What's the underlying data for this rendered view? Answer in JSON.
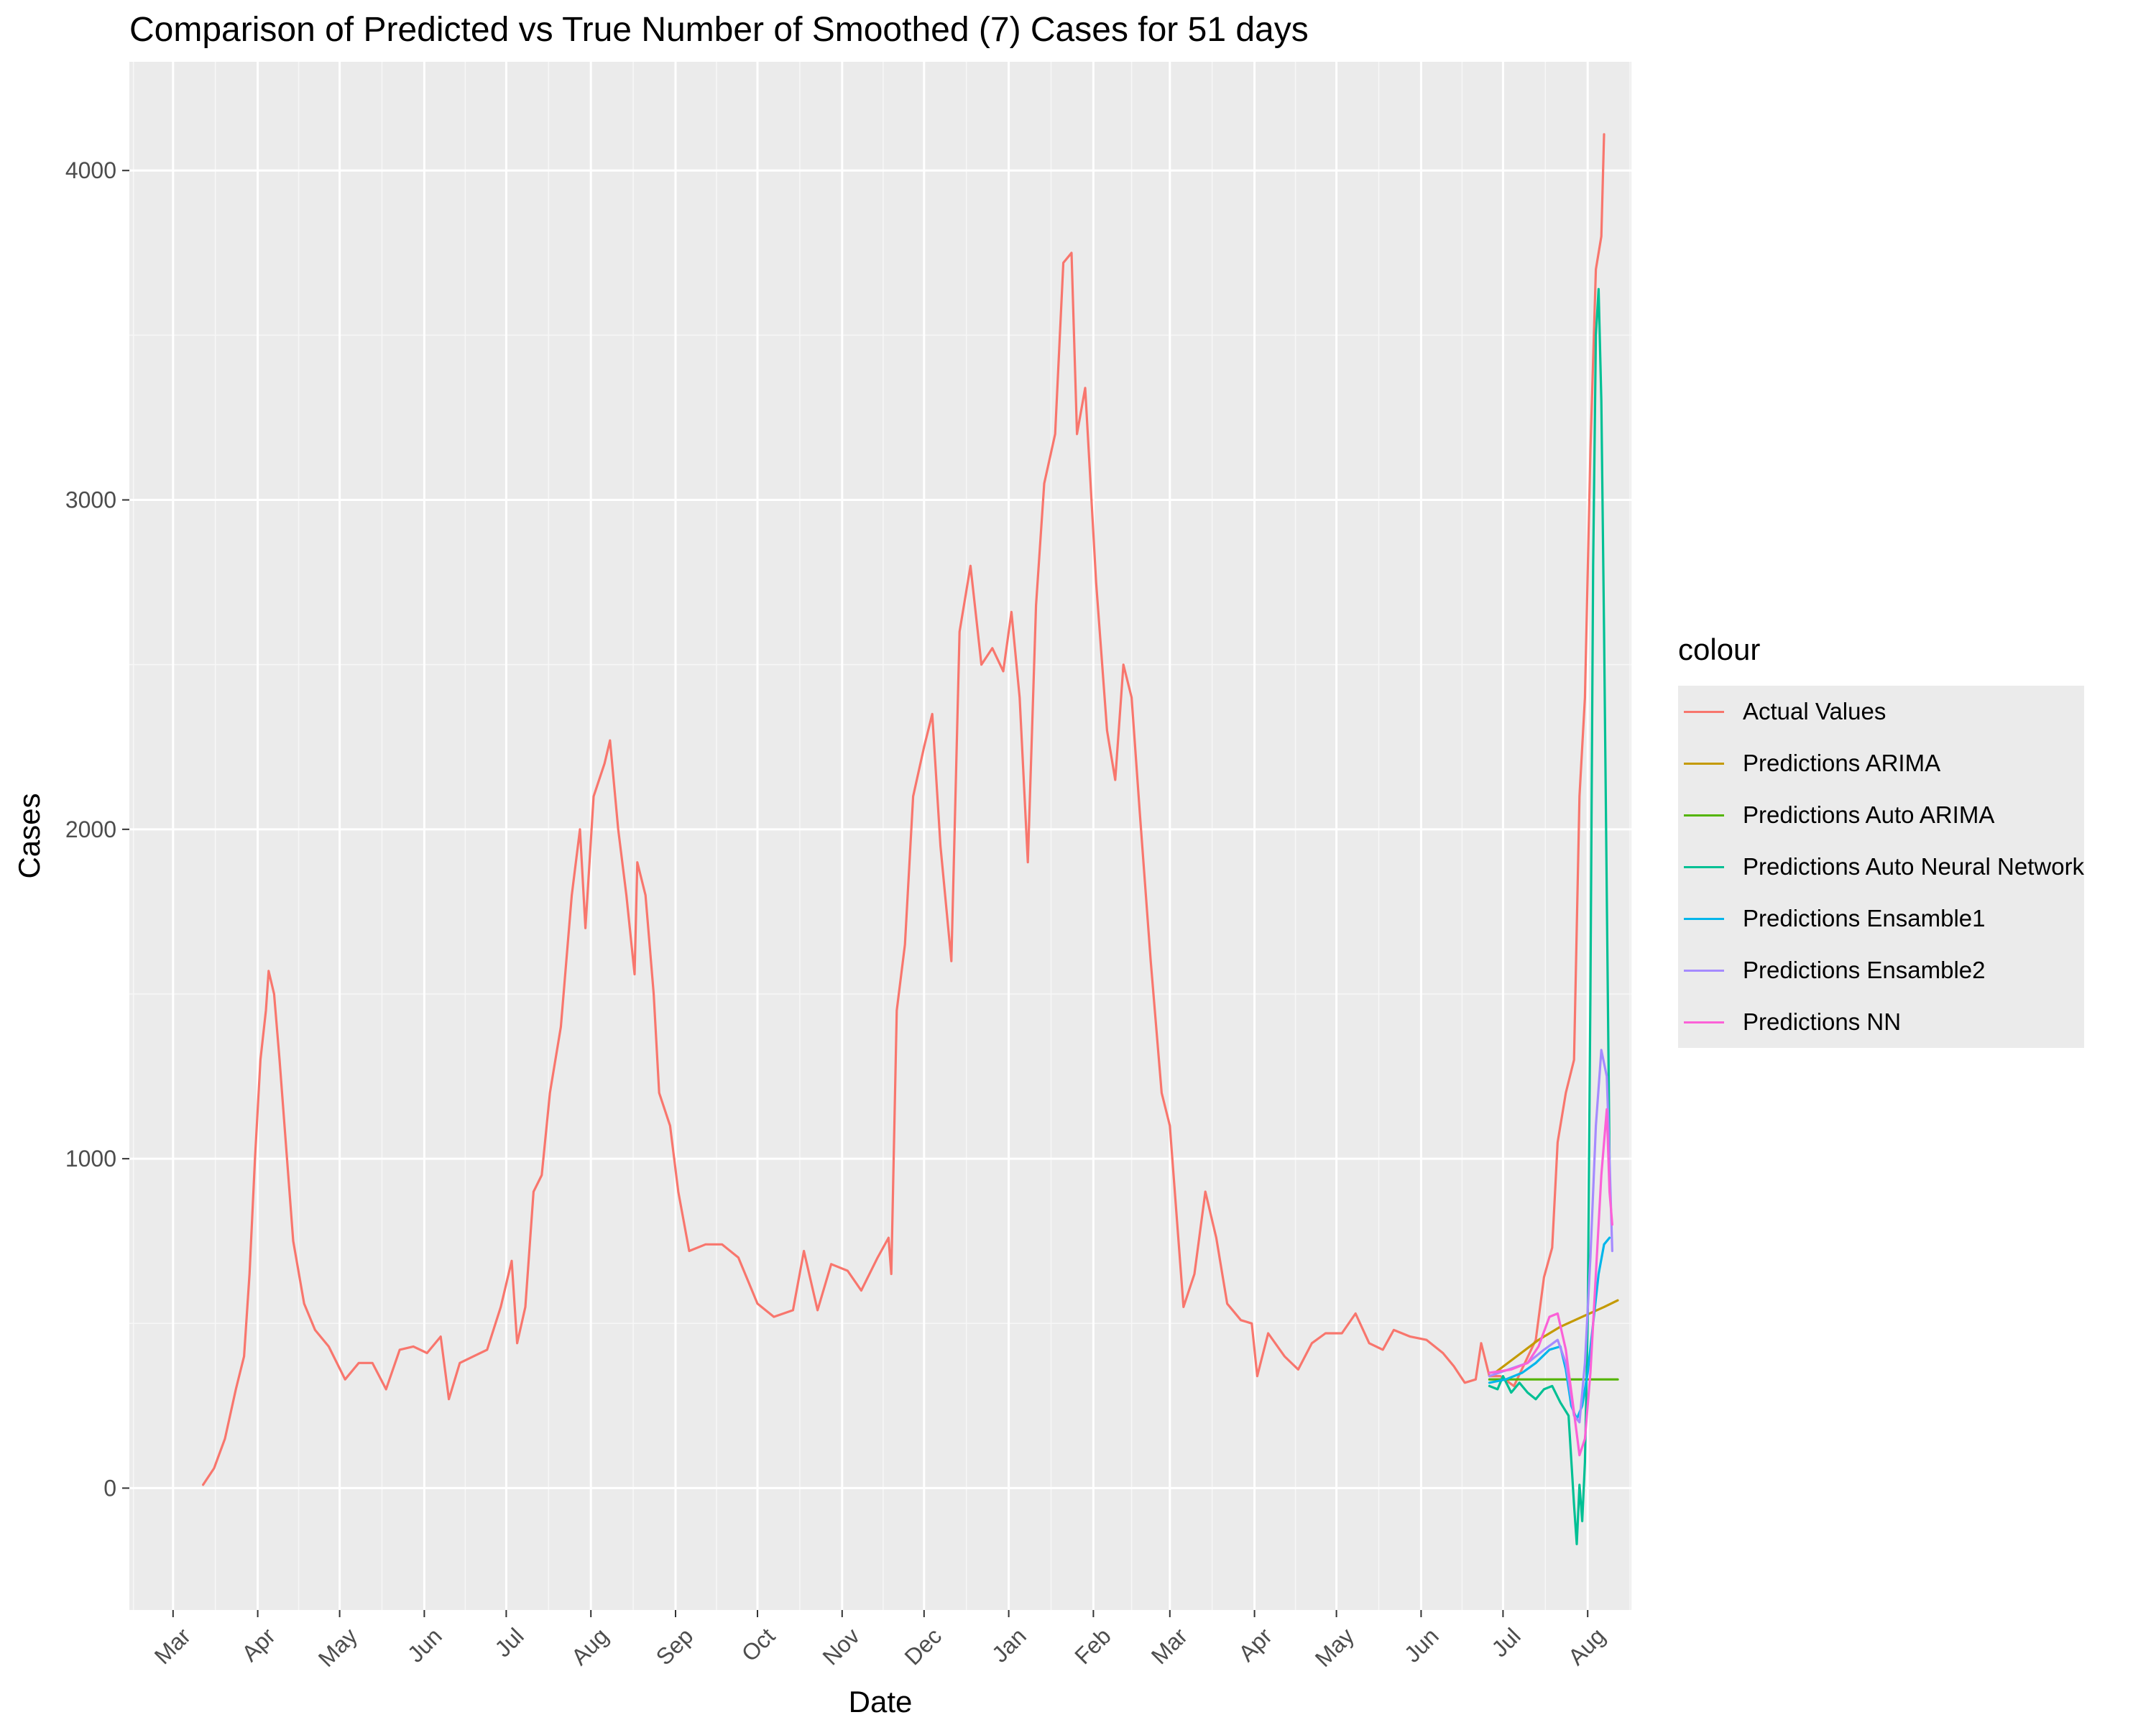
{
  "chart_data": {
    "type": "line",
    "title": "Comparison of Predicted vs True Number of Smoothed (7) Cases for 51 days",
    "xlabel": "Date",
    "ylabel": "Cases",
    "x_ticks": [
      "Mar",
      "Apr",
      "May",
      "Jun",
      "Jul",
      "Aug",
      "Sep",
      "Oct",
      "Nov",
      "Dec",
      "Jan",
      "Feb",
      "Mar",
      "Apr",
      "May",
      "Jun",
      "Jul",
      "Aug"
    ],
    "y_ticks": [
      0,
      1000,
      2000,
      3000,
      4000
    ],
    "xlim": [
      "2020-02-14",
      "2021-08-17"
    ],
    "ylim": [
      -370,
      4330
    ],
    "legend_title": "colour",
    "legend_position": "right",
    "grid": true,
    "series": [
      {
        "name": "Actual Values",
        "color": "#F8766D",
        "points": [
          [
            "2020-03-12",
            10
          ],
          [
            "2020-03-16",
            60
          ],
          [
            "2020-03-20",
            150
          ],
          [
            "2020-03-24",
            300
          ],
          [
            "2020-03-27",
            400
          ],
          [
            "2020-03-29",
            650
          ],
          [
            "2020-03-31",
            1000
          ],
          [
            "2020-04-02",
            1300
          ],
          [
            "2020-04-04",
            1450
          ],
          [
            "2020-04-05",
            1570
          ],
          [
            "2020-04-07",
            1500
          ],
          [
            "2020-04-09",
            1300
          ],
          [
            "2020-04-11",
            1080
          ],
          [
            "2020-04-14",
            750
          ],
          [
            "2020-04-18",
            560
          ],
          [
            "2020-04-22",
            480
          ],
          [
            "2020-04-27",
            430
          ],
          [
            "2020-05-03",
            330
          ],
          [
            "2020-05-08",
            380
          ],
          [
            "2020-05-13",
            380
          ],
          [
            "2020-05-18",
            300
          ],
          [
            "2020-05-23",
            420
          ],
          [
            "2020-05-28",
            430
          ],
          [
            "2020-06-02",
            410
          ],
          [
            "2020-06-07",
            460
          ],
          [
            "2020-06-10",
            270
          ],
          [
            "2020-06-14",
            380
          ],
          [
            "2020-06-19",
            400
          ],
          [
            "2020-06-24",
            420
          ],
          [
            "2020-06-29",
            550
          ],
          [
            "2020-07-03",
            690
          ],
          [
            "2020-07-05",
            440
          ],
          [
            "2020-07-08",
            550
          ],
          [
            "2020-07-11",
            900
          ],
          [
            "2020-07-14",
            950
          ],
          [
            "2020-07-17",
            1200
          ],
          [
            "2020-07-21",
            1400
          ],
          [
            "2020-07-25",
            1800
          ],
          [
            "2020-07-28",
            2000
          ],
          [
            "2020-07-30",
            1700
          ],
          [
            "2020-08-02",
            2100
          ],
          [
            "2020-08-06",
            2200
          ],
          [
            "2020-08-08",
            2270
          ],
          [
            "2020-08-11",
            2000
          ],
          [
            "2020-08-14",
            1800
          ],
          [
            "2020-08-17",
            1560
          ],
          [
            "2020-08-18",
            1900
          ],
          [
            "2020-08-21",
            1800
          ],
          [
            "2020-08-24",
            1500
          ],
          [
            "2020-08-26",
            1200
          ],
          [
            "2020-08-30",
            1100
          ],
          [
            "2020-09-02",
            900
          ],
          [
            "2020-09-06",
            720
          ],
          [
            "2020-09-12",
            740
          ],
          [
            "2020-09-18",
            740
          ],
          [
            "2020-09-24",
            700
          ],
          [
            "2020-10-01",
            560
          ],
          [
            "2020-10-07",
            520
          ],
          [
            "2020-10-14",
            540
          ],
          [
            "2020-10-18",
            720
          ],
          [
            "2020-10-23",
            540
          ],
          [
            "2020-10-28",
            680
          ],
          [
            "2020-11-03",
            660
          ],
          [
            "2020-11-08",
            600
          ],
          [
            "2020-11-14",
            700
          ],
          [
            "2020-11-18",
            760
          ],
          [
            "2020-11-19",
            650
          ],
          [
            "2020-11-21",
            1450
          ],
          [
            "2020-11-24",
            1650
          ],
          [
            "2020-11-27",
            2100
          ],
          [
            "2020-12-01",
            2250
          ],
          [
            "2020-12-04",
            2350
          ],
          [
            "2020-12-07",
            1950
          ],
          [
            "2020-12-11",
            1600
          ],
          [
            "2020-12-14",
            2600
          ],
          [
            "2020-12-18",
            2800
          ],
          [
            "2020-12-22",
            2500
          ],
          [
            "2020-12-26",
            2550
          ],
          [
            "2020-12-30",
            2480
          ],
          [
            "2021-01-02",
            2660
          ],
          [
            "2021-01-05",
            2400
          ],
          [
            "2021-01-08",
            1900
          ],
          [
            "2021-01-11",
            2680
          ],
          [
            "2021-01-14",
            3050
          ],
          [
            "2021-01-18",
            3200
          ],
          [
            "2021-01-21",
            3720
          ],
          [
            "2021-01-24",
            3750
          ],
          [
            "2021-01-26",
            3200
          ],
          [
            "2021-01-29",
            3340
          ],
          [
            "2021-02-02",
            2750
          ],
          [
            "2021-02-06",
            2300
          ],
          [
            "2021-02-09",
            2150
          ],
          [
            "2021-02-12",
            2500
          ],
          [
            "2021-02-15",
            2400
          ],
          [
            "2021-02-18",
            2050
          ],
          [
            "2021-02-22",
            1600
          ],
          [
            "2021-02-26",
            1200
          ],
          [
            "2021-03-01",
            1100
          ],
          [
            "2021-03-03",
            880
          ],
          [
            "2021-03-06",
            550
          ],
          [
            "2021-03-10",
            650
          ],
          [
            "2021-03-14",
            900
          ],
          [
            "2021-03-18",
            760
          ],
          [
            "2021-03-22",
            560
          ],
          [
            "2021-03-27",
            510
          ],
          [
            "2021-03-31",
            500
          ],
          [
            "2021-04-02",
            340
          ],
          [
            "2021-04-06",
            470
          ],
          [
            "2021-04-12",
            400
          ],
          [
            "2021-04-17",
            360
          ],
          [
            "2021-04-22",
            440
          ],
          [
            "2021-04-27",
            470
          ],
          [
            "2021-05-03",
            470
          ],
          [
            "2021-05-08",
            530
          ],
          [
            "2021-05-13",
            440
          ],
          [
            "2021-05-18",
            420
          ],
          [
            "2021-05-22",
            480
          ],
          [
            "2021-05-28",
            460
          ],
          [
            "2021-06-03",
            450
          ],
          [
            "2021-06-09",
            410
          ],
          [
            "2021-06-13",
            370
          ],
          [
            "2021-06-17",
            320
          ],
          [
            "2021-06-21",
            330
          ],
          [
            "2021-06-23",
            440
          ],
          [
            "2021-06-26",
            340
          ],
          [
            "2021-06-30",
            340
          ],
          [
            "2021-07-05",
            310
          ],
          [
            "2021-07-09",
            380
          ],
          [
            "2021-07-13",
            450
          ],
          [
            "2021-07-16",
            640
          ],
          [
            "2021-07-19",
            730
          ],
          [
            "2021-07-21",
            1050
          ],
          [
            "2021-07-24",
            1200
          ],
          [
            "2021-07-27",
            1300
          ],
          [
            "2021-07-29",
            2100
          ],
          [
            "2021-07-31",
            2400
          ],
          [
            "2021-08-02",
            3150
          ],
          [
            "2021-08-04",
            3700
          ],
          [
            "2021-08-06",
            3800
          ],
          [
            "2021-08-07",
            4110
          ]
        ]
      },
      {
        "name": "Predictions ARIMA",
        "color": "#C49A00",
        "points": [
          [
            "2021-06-28",
            350
          ],
          [
            "2021-07-06",
            400
          ],
          [
            "2021-07-14",
            450
          ],
          [
            "2021-07-22",
            490
          ],
          [
            "2021-07-30",
            520
          ],
          [
            "2021-08-07",
            550
          ],
          [
            "2021-08-12",
            570
          ]
        ]
      },
      {
        "name": "Predictions Auto ARIMA",
        "color": "#53B400",
        "points": [
          [
            "2021-06-26",
            330
          ],
          [
            "2021-08-12",
            330
          ]
        ]
      },
      {
        "name": "Predictions Auto Neural Network",
        "color": "#00C094",
        "points": [
          [
            "2021-06-26",
            310
          ],
          [
            "2021-06-29",
            300
          ],
          [
            "2021-07-01",
            340
          ],
          [
            "2021-07-04",
            290
          ],
          [
            "2021-07-07",
            320
          ],
          [
            "2021-07-10",
            290
          ],
          [
            "2021-07-13",
            270
          ],
          [
            "2021-07-16",
            300
          ],
          [
            "2021-07-19",
            310
          ],
          [
            "2021-07-22",
            260
          ],
          [
            "2021-07-25",
            220
          ],
          [
            "2021-07-27",
            -50
          ],
          [
            "2021-07-28",
            -170
          ],
          [
            "2021-07-29",
            10
          ],
          [
            "2021-07-30",
            -100
          ],
          [
            "2021-07-31",
            80
          ],
          [
            "2021-08-01",
            500
          ],
          [
            "2021-08-02",
            1500
          ],
          [
            "2021-08-03",
            2800
          ],
          [
            "2021-08-04",
            3500
          ],
          [
            "2021-08-05",
            3640
          ],
          [
            "2021-08-06",
            3300
          ],
          [
            "2021-08-07",
            2600
          ],
          [
            "2021-08-08",
            1800
          ],
          [
            "2021-08-09",
            1000
          ]
        ]
      },
      {
        "name": "Predictions Ensamble1",
        "color": "#00B6EB",
        "points": [
          [
            "2021-06-26",
            320
          ],
          [
            "2021-07-02",
            330
          ],
          [
            "2021-07-08",
            350
          ],
          [
            "2021-07-13",
            380
          ],
          [
            "2021-07-18",
            420
          ],
          [
            "2021-07-22",
            430
          ],
          [
            "2021-07-24",
            360
          ],
          [
            "2021-07-26",
            250
          ],
          [
            "2021-07-28",
            210
          ],
          [
            "2021-07-30",
            250
          ],
          [
            "2021-08-01",
            350
          ],
          [
            "2021-08-03",
            500
          ],
          [
            "2021-08-05",
            650
          ],
          [
            "2021-08-07",
            740
          ],
          [
            "2021-08-09",
            760
          ]
        ]
      },
      {
        "name": "Predictions Ensamble2",
        "color": "#A58AFF",
        "points": [
          [
            "2021-06-26",
            340
          ],
          [
            "2021-07-03",
            360
          ],
          [
            "2021-07-10",
            380
          ],
          [
            "2021-07-16",
            420
          ],
          [
            "2021-07-21",
            450
          ],
          [
            "2021-07-24",
            380
          ],
          [
            "2021-07-27",
            220
          ],
          [
            "2021-07-29",
            200
          ],
          [
            "2021-07-31",
            380
          ],
          [
            "2021-08-02",
            700
          ],
          [
            "2021-08-04",
            1100
          ],
          [
            "2021-08-06",
            1330
          ],
          [
            "2021-08-08",
            1250
          ],
          [
            "2021-08-09",
            1000
          ],
          [
            "2021-08-10",
            720
          ]
        ]
      },
      {
        "name": "Predictions NN",
        "color": "#FB61D7",
        "points": [
          [
            "2021-06-26",
            350
          ],
          [
            "2021-07-04",
            360
          ],
          [
            "2021-07-10",
            380
          ],
          [
            "2021-07-14",
            430
          ],
          [
            "2021-07-18",
            520
          ],
          [
            "2021-07-21",
            530
          ],
          [
            "2021-07-24",
            420
          ],
          [
            "2021-07-27",
            230
          ],
          [
            "2021-07-29",
            100
          ],
          [
            "2021-07-31",
            150
          ],
          [
            "2021-08-02",
            350
          ],
          [
            "2021-08-04",
            650
          ],
          [
            "2021-08-06",
            950
          ],
          [
            "2021-08-08",
            1150
          ],
          [
            "2021-08-09",
            900
          ],
          [
            "2021-08-10",
            800
          ]
        ]
      }
    ]
  }
}
